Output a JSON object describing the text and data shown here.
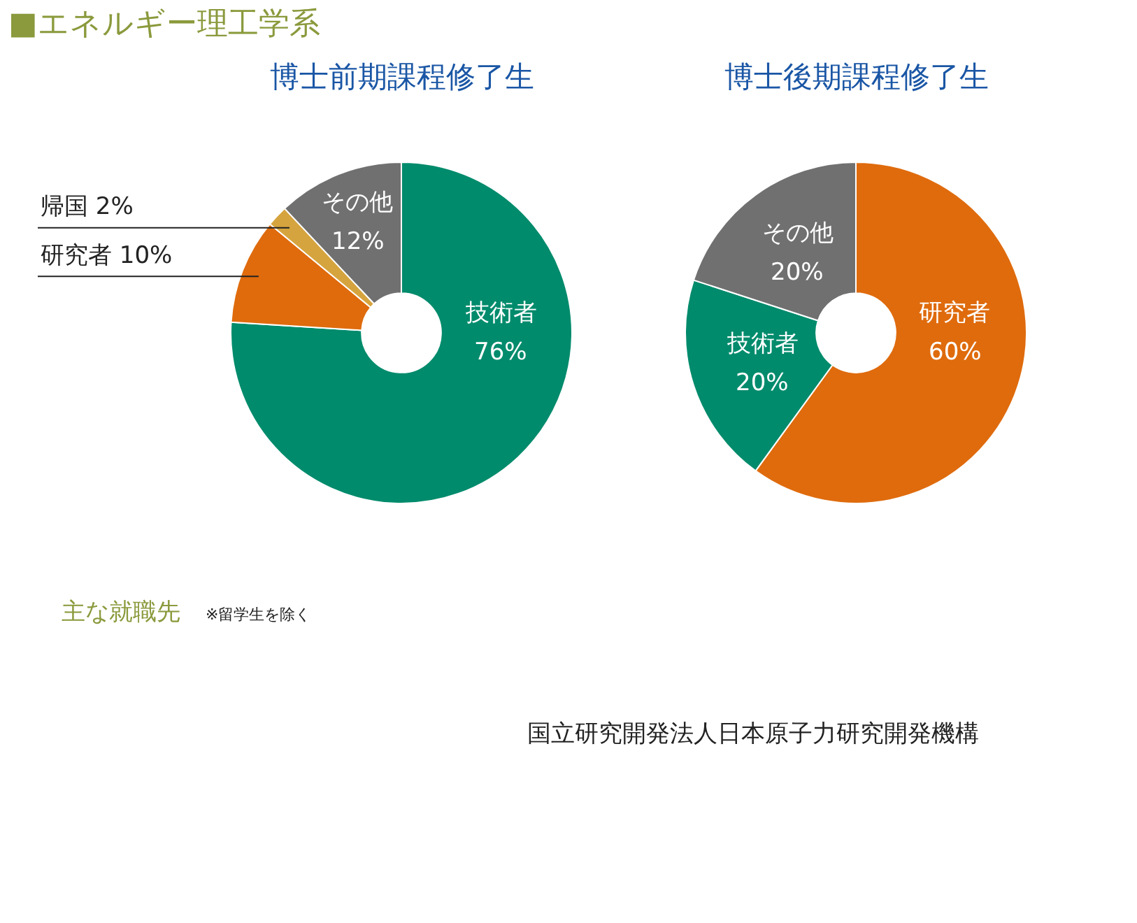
{
  "chart_data": [
    {
      "type": "donut",
      "title": "博士前期課程修了生",
      "annotations": [
        "■エネルギー理工学系"
      ],
      "categories": [
        "技術者",
        "研究者",
        "帰国",
        "その他"
      ],
      "values": [
        76,
        10,
        2,
        12
      ],
      "value_labels": [
        "76%",
        "10%",
        "2%",
        "12%"
      ],
      "colors": [
        "#008b6c",
        "#df6b0d",
        "#d6a43e",
        "#707070"
      ]
    },
    {
      "type": "donut",
      "title": "博士後期課程修了生",
      "categories": [
        "研究者",
        "技術者",
        "その他"
      ],
      "values": [
        60,
        20,
        20
      ],
      "value_labels": [
        "60%",
        "20%",
        "20%"
      ],
      "colors": [
        "#df6b0d",
        "#008b6c",
        "#707070"
      ]
    },
    {
      "type": "other",
      "title": "主な就職先",
      "subtitle": "※留学生を除く",
      "annotations": [
        "国立研究開発法人日本原子力研究開発機構"
      ]
    }
  ]
}
